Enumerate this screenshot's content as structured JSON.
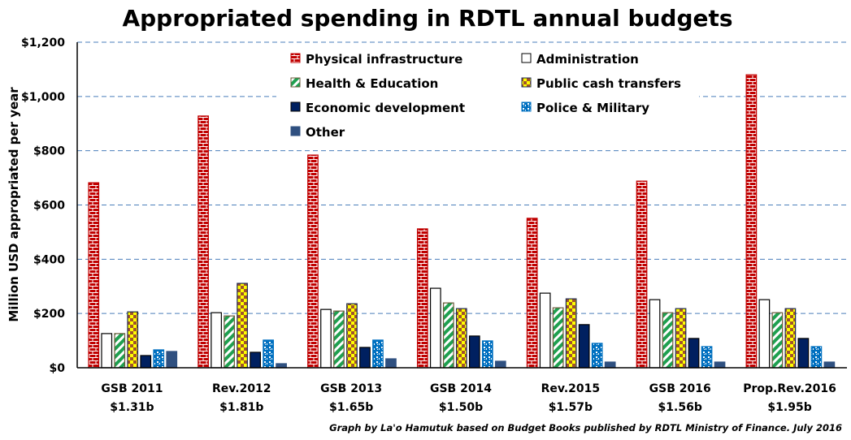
{
  "chart_data": {
    "type": "bar",
    "title": "Appropriated spending in RDTL annual budgets",
    "xlabel": "",
    "ylabel": "Million USD appropriated  per year",
    "ylim": [
      0,
      1200
    ],
    "yticks": [
      0,
      200,
      400,
      600,
      800,
      1000,
      1200
    ],
    "ytick_labels": [
      "$0",
      "$200",
      "$400",
      "$600",
      "$800",
      "$1,000",
      "$1,200"
    ],
    "grid": true,
    "legend_position": "top-center",
    "categories": [
      "GSB 2011",
      "Rev.2012",
      "GSB 2013",
      "GSB 2014",
      "Rev.2015",
      "GSB 2016",
      "Prop.Rev.2016"
    ],
    "category_totals": [
      "$1.31b",
      "$1.81b",
      "$1.65b",
      "$1.50b",
      "$1.57b",
      "$1.56b",
      "$1.95b"
    ],
    "series": [
      {
        "name": "Physical infrastructure",
        "pattern": "brick",
        "color": "#c00000",
        "values": [
          682,
          928,
          784,
          512,
          551,
          688,
          1080
        ]
      },
      {
        "name": "Administration",
        "pattern": "solid",
        "color": "#ffffff",
        "values": [
          126,
          203,
          215,
          293,
          275,
          251,
          251
        ]
      },
      {
        "name": "Health & Education",
        "pattern": "diagonal",
        "color": "#1fa050",
        "values": [
          126,
          191,
          209,
          239,
          221,
          203,
          203
        ]
      },
      {
        "name": "Public cash transfers",
        "pattern": "checker",
        "color": "#ffff00",
        "values": [
          206,
          311,
          236,
          218,
          254,
          218,
          218
        ]
      },
      {
        "name": "Economic development",
        "pattern": "solid",
        "color": "#002060",
        "values": [
          45,
          57,
          75,
          117,
          159,
          108,
          108
        ]
      },
      {
        "name": "Police & Military",
        "pattern": "dots",
        "color": "#0070c0",
        "values": [
          66,
          102,
          102,
          99,
          90,
          78,
          78
        ]
      },
      {
        "name": "Other",
        "pattern": "solid",
        "color": "#2f5080",
        "values": [
          60,
          15,
          33,
          24,
          21,
          21,
          21
        ]
      }
    ],
    "footer": "Graph by La'o Hamutuk based on Budget Books published by RDTL Ministry of Finance.  July 2016"
  }
}
